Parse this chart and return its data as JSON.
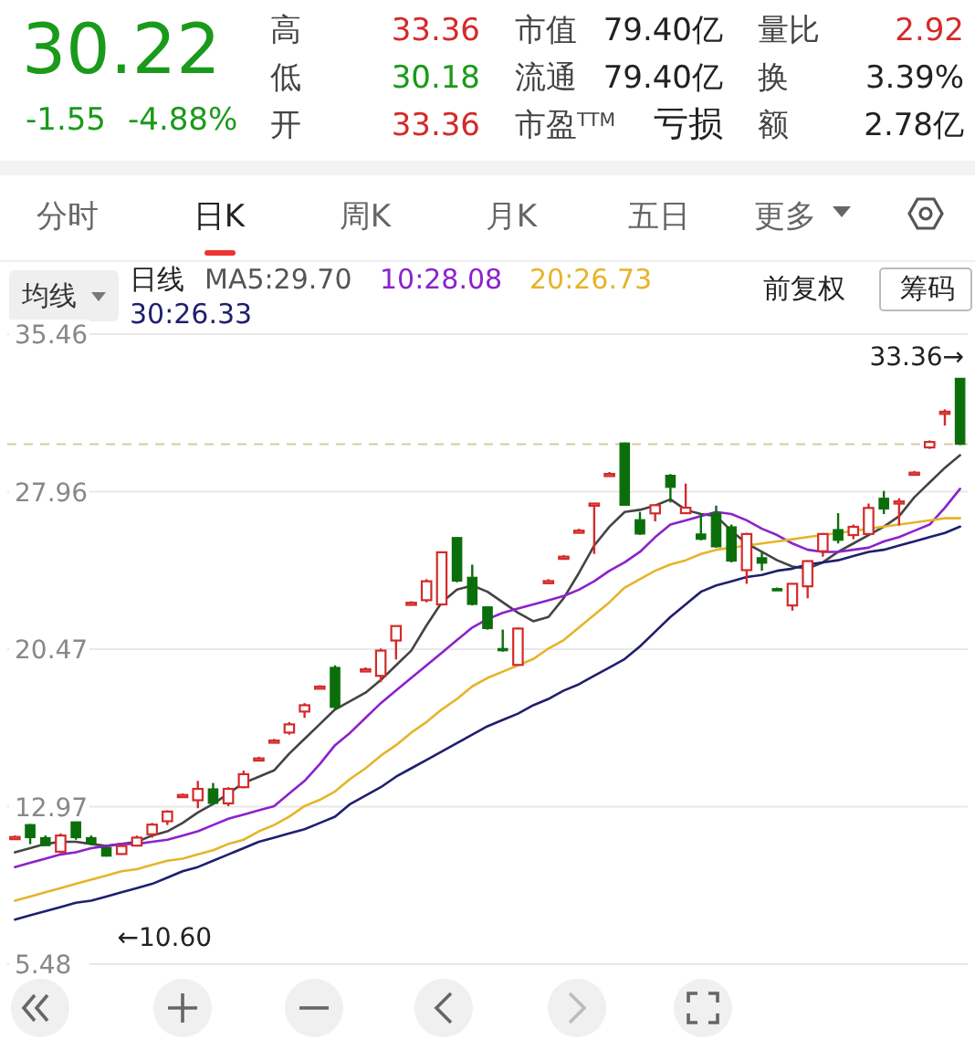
{
  "chart_data": {
    "type": "candlestick",
    "categories": [
      null,
      null,
      null,
      null,
      null,
      null,
      null,
      null,
      null,
      null,
      null,
      null,
      null,
      null,
      null,
      null,
      null,
      null,
      null,
      null,
      null,
      null,
      null,
      null,
      null,
      null,
      null,
      null,
      null,
      null,
      null,
      null,
      null,
      null,
      null,
      null,
      null,
      null,
      null,
      null,
      null,
      null,
      null,
      null,
      null,
      null,
      null,
      null,
      null,
      null,
      null,
      null,
      null,
      null,
      null,
      null,
      null,
      null,
      null,
      null,
      null,
      null,
      null
    ],
    "ohlc": [
      [
        11.53,
        11.6,
        11.45,
        11.53
      ],
      [
        12.12,
        12.15,
        11.19,
        11.5
      ],
      [
        11.5,
        11.6,
        11.1,
        11.12
      ],
      [
        10.83,
        11.7,
        10.75,
        11.6
      ],
      [
        12.28,
        12.35,
        11.4,
        11.5
      ],
      [
        11.5,
        11.6,
        11.15,
        11.2
      ],
      [
        11.02,
        11.05,
        10.6,
        10.62
      ],
      [
        10.72,
        11.15,
        10.68,
        11.1
      ],
      [
        11.12,
        11.6,
        11.1,
        11.5
      ],
      [
        11.66,
        12.2,
        11.5,
        12.12
      ],
      [
        12.28,
        12.8,
        12.1,
        12.74
      ],
      [
        13.53,
        13.6,
        13.45,
        13.53
      ],
      [
        13.28,
        14.2,
        12.9,
        13.82
      ],
      [
        13.82,
        14.1,
        13.1,
        13.13
      ],
      [
        13.13,
        13.9,
        13.0,
        13.82
      ],
      [
        13.9,
        14.69,
        13.85,
        14.52
      ],
      [
        15.27,
        15.35,
        15.2,
        15.27
      ],
      [
        16.12,
        16.2,
        16.05,
        16.12
      ],
      [
        16.5,
        17.0,
        16.4,
        16.89
      ],
      [
        17.5,
        17.9,
        17.2,
        17.8
      ],
      [
        18.69,
        18.75,
        18.6,
        18.69
      ],
      [
        19.6,
        19.7,
        17.6,
        17.7
      ],
      null,
      [
        19.51,
        19.6,
        19.45,
        19.51
      ],
      [
        19.2,
        20.5,
        18.9,
        20.4
      ],
      [
        20.88,
        21.6,
        19.98,
        21.57
      ],
      [
        22.68,
        22.75,
        22.6,
        22.68
      ],
      [
        22.8,
        23.8,
        22.7,
        23.7
      ],
      [
        22.6,
        25.1,
        22.55,
        25.08
      ],
      [
        25.78,
        25.8,
        23.65,
        23.71
      ],
      [
        23.89,
        24.49,
        22.55,
        22.6
      ],
      [
        22.48,
        22.5,
        21.4,
        21.45
      ],
      [
        20.5,
        21.4,
        20.35,
        20.4
      ],
      [
        19.72,
        21.5,
        19.7,
        21.45
      ],
      null,
      [
        23.71,
        23.8,
        23.65,
        23.71
      ],
      [
        24.87,
        24.95,
        24.8,
        24.87
      ],
      [
        26.11,
        26.2,
        26.05,
        26.11
      ],
      [
        27.3,
        27.4,
        25.0,
        27.4
      ],
      [
        28.81,
        28.9,
        28.75,
        28.81
      ],
      [
        30.28,
        30.3,
        27.3,
        27.32
      ],
      [
        26.63,
        27.0,
        25.9,
        25.95
      ],
      [
        26.93,
        27.32,
        26.55,
        27.32
      ],
      [
        28.74,
        28.8,
        27.45,
        28.17
      ],
      [
        26.94,
        28.35,
        26.94,
        27.2
      ],
      [
        25.95,
        26.94,
        25.65,
        25.7
      ],
      [
        26.94,
        27.3,
        25.3,
        25.34
      ],
      [
        26.29,
        26.4,
        24.6,
        24.66
      ],
      [
        24.23,
        26.0,
        23.58,
        25.95
      ],
      [
        24.82,
        25.1,
        24.2,
        24.56
      ],
      [
        23.35,
        23.4,
        23.25,
        23.31
      ],
      [
        22.55,
        23.6,
        22.3,
        23.58
      ],
      [
        23.46,
        24.7,
        22.89,
        24.66
      ],
      [
        25.13,
        26.0,
        24.87,
        25.95
      ],
      [
        26.16,
        26.94,
        25.5,
        25.65
      ],
      [
        25.9,
        26.4,
        25.7,
        26.29
      ],
      [
        25.95,
        27.4,
        25.9,
        27.19
      ],
      [
        27.65,
        28.0,
        26.9,
        27.14
      ],
      [
        27.4,
        27.65,
        26.36,
        27.5
      ],
      [
        28.87,
        28.95,
        28.8,
        28.87
      ],
      [
        30.07,
        30.4,
        30.0,
        30.33
      ],
      [
        31.75,
        31.88,
        31.11,
        31.77
      ],
      [
        33.36,
        33.36,
        30.18,
        30.22
      ]
    ],
    "series": [
      {
        "type": "line",
        "name": "MA5:29.70",
        "color": "#444444",
        "values": [
          10.8,
          11.0,
          11.2,
          11.3,
          11.3,
          11.2,
          11.1,
          11.2,
          11.3,
          11.6,
          11.8,
          12.2,
          12.7,
          13.1,
          13.6,
          14.1,
          14.4,
          14.7,
          15.5,
          16.2,
          16.9,
          17.6,
          18.0,
          18.4,
          19.0,
          19.7,
          20.4,
          21.6,
          22.7,
          23.3,
          23.5,
          23.2,
          22.7,
          22.2,
          21.8,
          22.0,
          22.9,
          24.1,
          25.4,
          26.3,
          27.0,
          27.1,
          27.3,
          27.6,
          27.1,
          26.9,
          26.8,
          26.1,
          25.5,
          25.1,
          24.7,
          24.4,
          24.3,
          24.6,
          25.1,
          25.5,
          25.9,
          26.3,
          26.8,
          27.7,
          28.4,
          29.1,
          29.7
        ]
      },
      {
        "type": "line",
        "name": "10:28.08",
        "color": "#8b22cc",
        "values": [
          10.1,
          10.3,
          10.5,
          10.7,
          10.8,
          11.0,
          11.1,
          11.2,
          11.2,
          11.3,
          11.4,
          11.6,
          11.8,
          12.1,
          12.4,
          12.6,
          12.8,
          13.0,
          13.6,
          14.2,
          15.0,
          15.9,
          16.5,
          17.2,
          17.9,
          18.5,
          19.1,
          19.7,
          20.3,
          20.9,
          21.5,
          21.9,
          22.2,
          22.4,
          22.6,
          22.8,
          23.0,
          23.3,
          23.7,
          24.2,
          24.6,
          25.1,
          25.8,
          26.4,
          26.6,
          26.8,
          27.0,
          26.9,
          26.6,
          26.2,
          25.9,
          25.5,
          25.2,
          25.1,
          25.1,
          25.2,
          25.3,
          25.6,
          25.8,
          26.1,
          26.4,
          27.2,
          28.1
        ]
      },
      {
        "type": "line",
        "name": "20:26.73",
        "color": "#e6b42a",
        "values": [
          8.5,
          8.7,
          8.9,
          9.1,
          9.3,
          9.5,
          9.7,
          9.9,
          10.0,
          10.2,
          10.4,
          10.5,
          10.7,
          10.9,
          11.2,
          11.4,
          11.8,
          12.1,
          12.5,
          13.0,
          13.3,
          13.7,
          14.3,
          14.8,
          15.4,
          15.9,
          16.5,
          17.0,
          17.6,
          18.1,
          18.7,
          19.1,
          19.4,
          19.7,
          20.0,
          20.5,
          20.9,
          21.5,
          22.1,
          22.7,
          23.4,
          23.8,
          24.2,
          24.5,
          24.7,
          25.0,
          25.2,
          25.3,
          25.4,
          25.5,
          25.6,
          25.7,
          25.8,
          25.9,
          26.0,
          26.1,
          26.2,
          26.3,
          26.4,
          26.5,
          26.6,
          26.7,
          26.7
        ]
      },
      {
        "type": "line",
        "name": "30:26.33",
        "color": "#1f1f6e",
        "values": [
          7.6,
          7.8,
          8.0,
          8.2,
          8.4,
          8.5,
          8.7,
          8.9,
          9.1,
          9.3,
          9.6,
          9.9,
          10.1,
          10.4,
          10.7,
          11.0,
          11.3,
          11.5,
          11.7,
          11.9,
          12.2,
          12.5,
          13.1,
          13.5,
          13.9,
          14.4,
          14.8,
          15.2,
          15.6,
          16.0,
          16.4,
          16.8,
          17.1,
          17.4,
          17.8,
          18.1,
          18.5,
          18.8,
          19.2,
          19.6,
          20.0,
          20.6,
          21.3,
          22.0,
          22.6,
          23.2,
          23.5,
          23.7,
          23.9,
          24.0,
          24.2,
          24.3,
          24.5,
          24.6,
          24.7,
          24.9,
          25.1,
          25.2,
          25.4,
          25.6,
          25.8,
          26.0,
          26.3
        ]
      }
    ],
    "ylim": [
      5.48,
      35.46
    ],
    "yticks": [
      35.46,
      27.96,
      20.47,
      12.97,
      5.48
    ],
    "grid": "y",
    "legend": "top",
    "ref_lines": [
      {
        "axis": "y",
        "value": 30.22,
        "line_style": "dashed",
        "color": "#d8c9a0"
      }
    ],
    "annotations": [
      "30.22",
      "-1.55",
      "-4.88%",
      "高",
      "33.36",
      "低",
      "30.18",
      "开",
      "33.36",
      "市值",
      "79.40亿",
      "流通",
      "79.40亿",
      "市盈$^{TTM}$",
      "亏损",
      "量比",
      "2.92",
      "换",
      "3.39%",
      "额",
      "2.78亿",
      "分时",
      "日K",
      "周K",
      "月K",
      "五日",
      "更多",
      "均线",
      "日线",
      "前复权",
      "筹码",
      "33.36→",
      {
        "text": "←10.60",
        "y": 10.6
      }
    ]
  }
}
